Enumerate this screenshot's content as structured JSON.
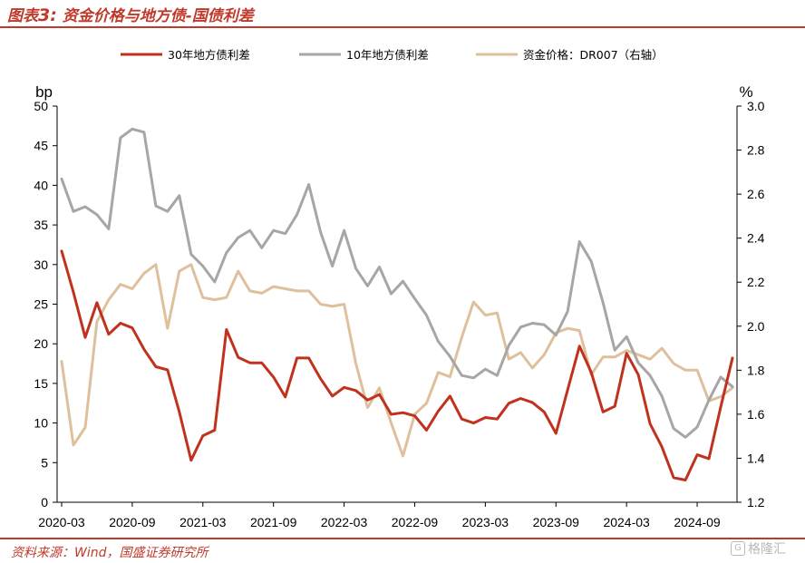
{
  "header": {
    "title_prefix": "图表",
    "title_num": "3:",
    "title_text": "资金价格与地方债-国债利差"
  },
  "footer": {
    "source": "资料来源：Wind，国盛证券研究所",
    "watermark_logo": "G",
    "watermark_text": "格隆汇"
  },
  "colors": {
    "accent": "#c0392b",
    "series_30y": "#c0321e",
    "series_10y": "#a6a6a6",
    "series_dr007": "#dfc09c"
  },
  "chart_data": {
    "type": "line",
    "title": "资金价格与地方债-国债利差",
    "x": [
      "2020-03",
      "2020-04",
      "2020-05",
      "2020-06",
      "2020-07",
      "2020-08",
      "2020-09",
      "2020-10",
      "2020-11",
      "2020-12",
      "2021-01",
      "2021-02",
      "2021-03",
      "2021-04",
      "2021-05",
      "2021-06",
      "2021-07",
      "2021-08",
      "2021-09",
      "2021-10",
      "2021-11",
      "2021-12",
      "2022-01",
      "2022-02",
      "2022-03",
      "2022-04",
      "2022-05",
      "2022-06",
      "2022-07",
      "2022-08",
      "2022-09",
      "2022-10",
      "2022-11",
      "2022-12",
      "2023-01",
      "2023-02",
      "2023-03",
      "2023-04",
      "2023-05",
      "2023-06",
      "2023-07",
      "2023-08",
      "2023-09",
      "2023-10",
      "2023-11",
      "2023-12",
      "2024-01",
      "2024-02",
      "2024-03",
      "2024-04",
      "2024-05",
      "2024-06",
      "2024-07",
      "2024-08",
      "2024-09",
      "2024-10",
      "2024-11",
      "2024-12"
    ],
    "x_ticks": [
      "2020-03",
      "2020-09",
      "2021-03",
      "2021-09",
      "2022-03",
      "2022-09",
      "2023-03",
      "2023-09",
      "2024-03",
      "2024-09"
    ],
    "xlabel": "",
    "y_left": {
      "label": "bp",
      "ylim": [
        0,
        50
      ],
      "ticks": [
        "0",
        "5",
        "10",
        "15",
        "20",
        "25",
        "30",
        "35",
        "40",
        "45",
        "50"
      ]
    },
    "y_right": {
      "label": "%",
      "ylim": [
        1.2,
        3.0
      ],
      "ticks": [
        "1.2",
        "1.4",
        "1.6",
        "1.8",
        "2.0",
        "2.2",
        "2.4",
        "2.6",
        "2.8",
        "3.0"
      ]
    },
    "series": [
      {
        "name": "30年地方债利差",
        "axis": "left",
        "color": "#c0321e",
        "values": [
          31.7,
          26.5,
          20.8,
          25.2,
          21.2,
          22.6,
          22,
          19.3,
          17.1,
          16.7,
          11.4,
          5.3,
          8.4,
          9.1,
          21.8,
          18.3,
          17.6,
          17.6,
          15.8,
          13.3,
          18.2,
          18.2,
          15.6,
          13.4,
          14.5,
          14.1,
          12.9,
          13.6,
          11.1,
          11.3,
          10.9,
          9.1,
          11.5,
          13.4,
          10.5,
          10,
          10.7,
          10.5,
          12.5,
          13.1,
          12.6,
          11.4,
          8.7,
          14.2,
          19.7,
          16.4,
          11.4,
          12.1,
          18.8,
          16.1,
          9.9,
          7,
          3.1,
          2.8,
          6,
          5.5,
          12,
          18.2
        ]
      },
      {
        "name": "10年地方债利差",
        "axis": "left",
        "color": "#a6a6a6",
        "values": [
          40.8,
          36.7,
          37.3,
          36.3,
          34.5,
          46,
          47.1,
          46.7,
          37.4,
          36.7,
          38.7,
          31.3,
          29.8,
          27.8,
          31.5,
          33.4,
          34.3,
          32.1,
          34.3,
          33.9,
          36.3,
          40.1,
          34.1,
          29.8,
          34.3,
          29.5,
          27.3,
          29.7,
          26.3,
          27.9,
          25.7,
          23.6,
          20.3,
          18.4,
          16,
          15.7,
          16.8,
          16,
          19.8,
          22.1,
          22.6,
          22.4,
          21.1,
          24.1,
          32.9,
          30.4,
          25.2,
          19.2,
          20.9,
          17.6,
          16,
          13.4,
          9.3,
          8.2,
          9.5,
          12.9,
          15.8,
          14.6
        ]
      },
      {
        "name": "资金价格：DR007（右轴）",
        "axis": "right",
        "color": "#dfc09c",
        "values": [
          1.84,
          1.46,
          1.54,
          2.02,
          2.12,
          2.19,
          2.17,
          2.24,
          2.28,
          1.99,
          2.25,
          2.28,
          2.13,
          2.12,
          2.13,
          2.25,
          2.16,
          2.15,
          2.18,
          2.17,
          2.16,
          2.16,
          2.1,
          2.09,
          2.1,
          1.83,
          1.63,
          1.72,
          1.56,
          1.41,
          1.6,
          1.65,
          1.79,
          1.77,
          1.95,
          2.11,
          2.05,
          2.06,
          1.85,
          1.88,
          1.81,
          1.87,
          1.97,
          1.99,
          1.98,
          1.78,
          1.86,
          1.86,
          1.89,
          1.87,
          1.85,
          1.9,
          1.83,
          1.8,
          1.8,
          1.66,
          1.68,
          1.72
        ]
      }
    ],
    "legend": {
      "position": "top"
    }
  }
}
